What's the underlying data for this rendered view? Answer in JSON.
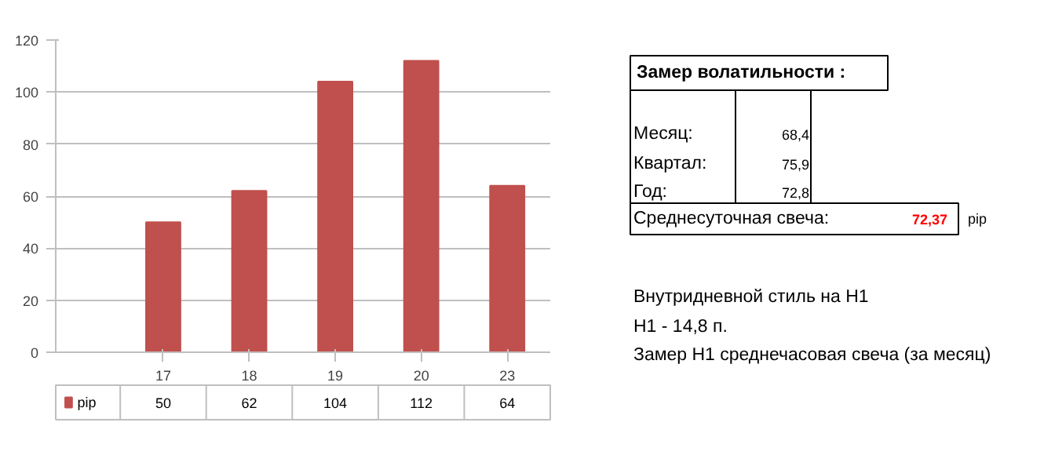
{
  "chart_data": [
    {
      "type": "bar",
      "categories": [
        "17",
        "18",
        "19",
        "20",
        "23"
      ],
      "series": [
        {
          "name": "pip",
          "color": "#c0504d",
          "values": [
            50,
            62,
            104,
            112,
            64
          ]
        }
      ],
      "ylim": [
        0,
        120
      ],
      "yticks": [
        0,
        20,
        40,
        60,
        80,
        100,
        120
      ],
      "grid": "y",
      "data_labels": true,
      "legend": "bottom"
    },
    {
      "type": "other",
      "annotations": [
        "Замер  волатильности  :",
        "Месяц:",
        "68,4",
        "Квартал:",
        "75,9",
        "Год:",
        "72,8",
        "Среднесуточная свеча:",
        "72,37",
        "pip",
        "Внутридневной стиль на H1",
        "H1 - 14,8 п.",
        "Замер H1 среднечасовая свеча (за месяц)"
      ]
    }
  ]
}
